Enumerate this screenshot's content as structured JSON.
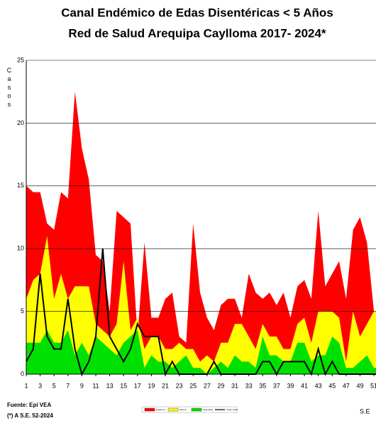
{
  "chart_data": {
    "type": "area",
    "title": "Canal Endémico de Edas Disentéricas  < 5 Años",
    "subtitle": "Red  de Salud Arequipa Caylloma 2017- 2024*",
    "y_label": "Casos",
    "x_label": "S.E",
    "source": "Fuente: Epi VEA",
    "note": "(*) A S.E. 52-2024",
    "x": [
      1,
      2,
      3,
      4,
      5,
      6,
      7,
      8,
      9,
      10,
      11,
      12,
      13,
      14,
      15,
      16,
      17,
      18,
      19,
      20,
      21,
      22,
      23,
      24,
      25,
      26,
      27,
      28,
      29,
      30,
      31,
      32,
      33,
      34,
      35,
      36,
      37,
      38,
      39,
      40,
      41,
      42,
      43,
      44,
      45,
      46,
      47,
      48,
      49,
      50,
      51,
      52
    ],
    "xlim": [
      1,
      51.3
    ],
    "xticks": [
      1,
      3,
      5,
      7,
      9,
      11,
      13,
      15,
      17,
      19,
      21,
      23,
      25,
      27,
      29,
      31,
      33,
      35,
      37,
      39,
      41,
      43,
      45,
      47,
      49,
      51
    ],
    "ylim": [
      0,
      25
    ],
    "yticks": [
      0,
      5,
      10,
      15,
      20,
      25
    ],
    "grid": true,
    "series": [
      {
        "name": "Epidemia",
        "color": "#ff0000",
        "kind": "area",
        "values": [
          15,
          14.5,
          14.5,
          12,
          11.5,
          14.5,
          14,
          22.5,
          18,
          15.5,
          9.5,
          9,
          5,
          13,
          12.5,
          12,
          3,
          10.5,
          4.5,
          4.5,
          6,
          6.5,
          3,
          2.5,
          12,
          6.5,
          4.5,
          3.5,
          5.5,
          6,
          6,
          4.5,
          8,
          6.5,
          6,
          6.5,
          5.5,
          6.5,
          4.5,
          7,
          7.5,
          6,
          13,
          7,
          8,
          9,
          6,
          11.5,
          12.5,
          10.5,
          5,
          5
        ]
      },
      {
        "name": "Alarma",
        "color": "#ffff00",
        "kind": "area",
        "values": [
          6,
          7.5,
          8,
          11,
          6,
          8,
          6,
          7,
          7,
          7,
          4,
          3.5,
          3,
          4,
          9,
          3.5,
          4.5,
          2,
          3,
          3,
          2,
          2,
          2.5,
          2,
          2,
          1,
          1.5,
          1,
          2.5,
          2.5,
          4,
          4,
          3,
          2,
          4,
          3,
          3,
          2,
          2,
          4,
          4.5,
          2.5,
          5,
          5,
          5,
          4.5,
          1,
          5,
          3,
          4,
          5,
          5
        ]
      },
      {
        "name": "Seguridad",
        "color": "#00e000",
        "kind": "area",
        "values": [
          2.5,
          2.5,
          2.5,
          3.5,
          2.5,
          2.5,
          3.5,
          1.5,
          2.5,
          1.5,
          3,
          2.5,
          2,
          1.5,
          2.5,
          3,
          3.5,
          0.5,
          1.5,
          1,
          1,
          0.5,
          1,
          1.5,
          0.5,
          0.5,
          0,
          0.5,
          1,
          0.5,
          1.5,
          1,
          1,
          0.5,
          3,
          1.5,
          1.5,
          1,
          1,
          2.5,
          2.5,
          1,
          1.5,
          1.5,
          3,
          2.5,
          0.5,
          0.5,
          1,
          1.5,
          0.5,
          0.5
        ]
      },
      {
        "name": "Casos 2024",
        "color": "#000000",
        "kind": "line",
        "values": [
          1,
          2,
          8,
          3,
          2,
          2,
          6,
          2,
          0,
          1,
          3,
          10,
          3,
          2,
          1,
          2,
          4,
          3,
          3,
          3,
          0,
          1,
          0,
          0,
          0,
          0,
          0,
          1,
          0,
          0,
          0,
          0,
          0,
          0,
          1,
          1,
          0,
          1,
          1,
          1,
          1,
          0,
          2,
          0,
          1,
          0,
          0,
          0,
          0,
          0,
          0,
          0
        ]
      }
    ]
  }
}
